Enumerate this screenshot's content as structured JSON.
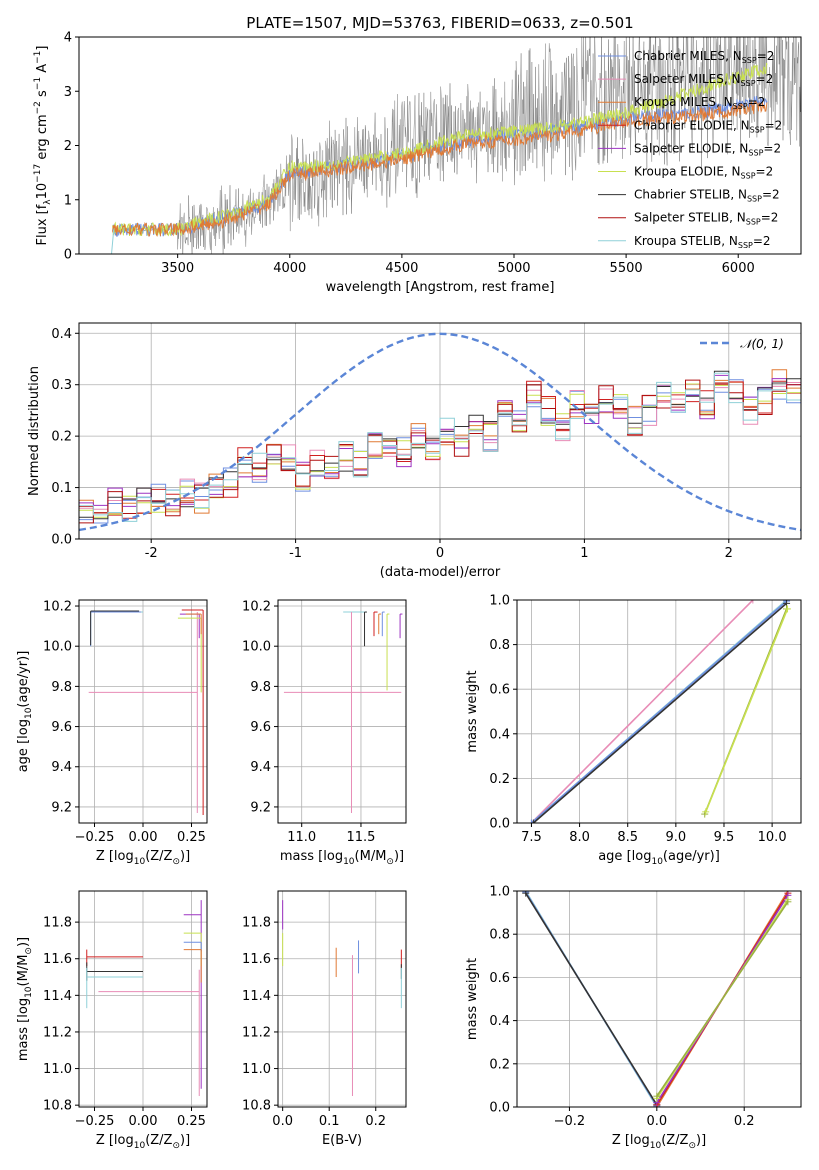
{
  "figure": {
    "title": "PLATE=1507, MJD=53763, FIBERID=0633, z=0.501"
  },
  "colors": {
    "chabrier_miles": "#6f8fe0",
    "salpeter_miles": "#e88cb6",
    "kroupa_miles": "#e07a35",
    "chabrier_elodie": "#d02020",
    "salpeter_elodie": "#9d33c2",
    "kroupa_elodie": "#c8e050",
    "chabrier_stelib": "#333333",
    "salpeter_stelib": "#b01010",
    "kroupa_stelib": "#8fd0d8",
    "data": "#808080",
    "normal": "#5b86d6"
  },
  "legend": {
    "sub": "SSP",
    "items": [
      {
        "label": "Chabrier MILES, N",
        "tail": "=2",
        "color": "#6f8fe0"
      },
      {
        "label": "Salpeter MILES, N",
        "tail": "=2",
        "color": "#e88cb6"
      },
      {
        "label": "Kroupa MILES, N",
        "tail": "=2",
        "color": "#e07a35"
      },
      {
        "label": "Chabrier ELODIE, N",
        "tail": "=2",
        "color": "#d02020"
      },
      {
        "label": "Salpeter ELODIE, N",
        "tail": "=2",
        "color": "#9d33c2"
      },
      {
        "label": "Kroupa ELODIE, N",
        "tail": "=2",
        "color": "#c8e050"
      },
      {
        "label": "Chabrier STELIB, N",
        "tail": "=2",
        "color": "#333333"
      },
      {
        "label": "Salpeter STELIB, N",
        "tail": "=2",
        "color": "#b01010"
      },
      {
        "label": "Kroupa STELIB, N",
        "tail": "=2",
        "color": "#8fd0d8"
      }
    ]
  },
  "chart_data": [
    {
      "id": "spectrum",
      "type": "line",
      "xlabel": "wavelength [Angstrom, rest frame]",
      "ylabel": "Flux [f",
      "ylabel_parts": [
        "Flux [f",
        "λ",
        "10",
        "−17",
        " erg cm",
        "−2",
        " s",
        "−1",
        " A",
        "−1",
        "]"
      ],
      "xlim": [
        3060,
        6280
      ],
      "ylim": [
        0,
        4
      ],
      "xticks": [
        3500,
        4000,
        4500,
        5000,
        5500,
        6000
      ],
      "yticks": [
        0,
        1,
        2,
        3,
        4
      ],
      "grid": false,
      "legend_position": "upper-right",
      "data_knots": {
        "x": [
          3210,
          3500,
          3700,
          3900,
          4000,
          4200,
          4500,
          4800,
          5000,
          5200,
          5500,
          5800,
          6100
        ],
        "y": [
          0.45,
          0.45,
          0.6,
          0.9,
          1.3,
          1.6,
          1.9,
          2.3,
          2.3,
          2.7,
          2.9,
          3.2,
          3.3
        ]
      },
      "data_noise_start": 3500,
      "models": [
        {
          "name": "Chabrier MILES",
          "x": [
            3210,
            3500,
            3700,
            3900,
            4000,
            4200,
            4500,
            4800,
            5000,
            5200,
            5500,
            5800,
            6100
          ],
          "y": [
            0.45,
            0.45,
            0.65,
            0.95,
            1.5,
            1.6,
            1.8,
            2.1,
            2.2,
            2.3,
            2.5,
            2.6,
            2.8
          ]
        },
        {
          "name": "Kroupa ELODIE",
          "x": [
            3210,
            3500,
            3700,
            3900,
            4000,
            4200,
            4500,
            4800,
            5000,
            5200,
            5500,
            5800,
            6100
          ],
          "y": [
            0.45,
            0.45,
            0.7,
            1.0,
            1.6,
            1.65,
            1.85,
            2.2,
            2.25,
            2.35,
            2.6,
            3.0,
            3.4
          ]
        },
        {
          "name": "Kroupa MILES",
          "x": [
            3210,
            3500,
            3700,
            3900,
            4000,
            4200,
            4500,
            4800,
            5000,
            5200,
            5500,
            5800,
            6100
          ],
          "y": [
            0.45,
            0.45,
            0.6,
            0.9,
            1.45,
            1.55,
            1.75,
            2.05,
            2.1,
            2.2,
            2.45,
            2.55,
            2.7
          ]
        }
      ]
    },
    {
      "id": "residuals",
      "type": "histogram",
      "xlabel": "(data-model)/error",
      "ylabel": "Normed distribution",
      "xlim": [
        -2.5,
        2.5
      ],
      "ylim": [
        0,
        0.42
      ],
      "xticks": [
        -2,
        -1,
        0,
        1,
        2
      ],
      "yticks": [
        0.0,
        0.1,
        0.2,
        0.3,
        0.4
      ],
      "grid": true,
      "legend_position": "upper-right",
      "legend_label": "𝒩(0, 1)",
      "curve": "normal pdf mean 0 sigma 1",
      "bin_edges_start": -2.5,
      "bin_width": 0.1,
      "hist_base": [
        0.05,
        0.06,
        0.07,
        0.06,
        0.07,
        0.08,
        0.07,
        0.09,
        0.08,
        0.1,
        0.11,
        0.15,
        0.14,
        0.17,
        0.16,
        0.12,
        0.15,
        0.14,
        0.16,
        0.15,
        0.18,
        0.19,
        0.17,
        0.2,
        0.18,
        0.21,
        0.19,
        0.22,
        0.2,
        0.24,
        0.23,
        0.28,
        0.25,
        0.22,
        0.26,
        0.24,
        0.27,
        0.26,
        0.23,
        0.25,
        0.28,
        0.27,
        0.29,
        0.26,
        0.3,
        0.28,
        0.25,
        0.27,
        0.3,
        0.29,
        0.31,
        0.3,
        0.33,
        0.32,
        0.3,
        0.31,
        0.28,
        0.26,
        0.27,
        0.25,
        0.22,
        0.21,
        0.19,
        0.2,
        0.18,
        0.17,
        0.16,
        0.17,
        0.16,
        0.15,
        0.14,
        0.15,
        0.13,
        0.14,
        0.12,
        0.13,
        0.12,
        0.13,
        0.11,
        0.12,
        0.11,
        0.12,
        0.1,
        0.11,
        0.1,
        0.1,
        0.09,
        0.1,
        0.09,
        0.1,
        0.09,
        0.09,
        0.08,
        0.09,
        0.08,
        0.09,
        0.08,
        0.08,
        0.07,
        0.08
      ]
    },
    {
      "id": "age-vs-z",
      "type": "scatter",
      "xlabel_parts": [
        "Z [log",
        "10",
        "(Z/Z",
        "⊙",
        ")]"
      ],
      "ylabel_parts": [
        "age  [log",
        "10",
        "(age/yr)]"
      ],
      "xlim": [
        -0.33,
        0.33
      ],
      "ylim": [
        9.12,
        10.23
      ],
      "xticks": [
        -0.25,
        0.0,
        0.25
      ],
      "xtick_labels": [
        "−0.25",
        "0.00",
        "0.25"
      ],
      "yticks": [
        9.2,
        9.4,
        9.6,
        9.8,
        10.0,
        10.2
      ],
      "grid": true,
      "errorbars": [
        {
          "color": "#8fd0d8",
          "x": -0.27,
          "y": 10.17,
          "xerr": [
            0.0,
            0.27
          ],
          "yerr": [
            0.17,
            0.0
          ]
        },
        {
          "color": "#6f8fe0",
          "x": -0.27,
          "y": 10.17,
          "xerr": [
            0.0,
            0.26
          ],
          "yerr": [
            0.17,
            0.0
          ]
        },
        {
          "color": "#333333",
          "x": -0.27,
          "y": 10.175,
          "xerr": [
            0.0,
            0.25
          ],
          "yerr": [
            0.17,
            0.0
          ]
        },
        {
          "color": "#e88cb6",
          "x": 0.28,
          "y": 9.77,
          "xerr": [
            0.56,
            0.0
          ],
          "yerr": [
            0.6,
            0.4
          ]
        },
        {
          "color": "#9d33c2",
          "x": 0.29,
          "y": 10.16,
          "xerr": [
            0.1,
            0.0
          ],
          "yerr": [
            0.12,
            0.0
          ]
        },
        {
          "color": "#c8e050",
          "x": 0.3,
          "y": 10.14,
          "xerr": [
            0.12,
            0.0
          ],
          "yerr": [
            0.37,
            0.0
          ]
        },
        {
          "color": "#d02020",
          "x": 0.31,
          "y": 10.18,
          "xerr": [
            0.11,
            0.0
          ],
          "yerr": [
            1.02,
            0.0
          ]
        },
        {
          "color": "#e07a35",
          "x": 0.3,
          "y": 10.16,
          "xerr": [
            0.08,
            0.0
          ],
          "yerr": [
            0.1,
            0.0
          ]
        }
      ]
    },
    {
      "id": "age-vs-mass",
      "type": "scatter",
      "xlabel_parts": [
        "mass [log",
        "10",
        "(M/M",
        "⊙",
        ")]"
      ],
      "xlim": [
        10.8,
        11.88
      ],
      "ylim": [
        9.12,
        10.23
      ],
      "xticks": [
        11.0,
        11.5
      ],
      "xtick_labels": [
        "11.0",
        "11.5"
      ],
      "yticks": [
        9.2,
        9.4,
        9.6,
        9.8,
        10.0,
        10.2
      ],
      "grid": true,
      "errorbars": [
        {
          "color": "#8fd0d8",
          "x": 11.55,
          "y": 10.17,
          "xerr": [
            0.2,
            0.0
          ],
          "yerr": [
            0.0,
            0.0
          ]
        },
        {
          "color": "#e88cb6",
          "x": 11.42,
          "y": 9.77,
          "xerr": [
            0.57,
            0.42
          ],
          "yerr": [
            0.6,
            0.4
          ]
        },
        {
          "color": "#333333",
          "x": 11.53,
          "y": 10.17,
          "xerr": [
            0.0,
            0.02
          ],
          "yerr": [
            0.17,
            0.0
          ]
        },
        {
          "color": "#d02020",
          "x": 11.61,
          "y": 10.17,
          "xerr": [
            0.0,
            0.03
          ],
          "yerr": [
            0.12,
            0.0
          ]
        },
        {
          "color": "#6f8fe0",
          "x": 11.68,
          "y": 10.17,
          "xerr": [
            0.0,
            0.02
          ],
          "yerr": [
            0.12,
            0.0
          ]
        },
        {
          "color": "#c8e050",
          "x": 11.72,
          "y": 10.16,
          "xerr": [
            0.0,
            0.02
          ],
          "yerr": [
            0.38,
            0.0
          ]
        },
        {
          "color": "#e07a35",
          "x": 11.65,
          "y": 10.16,
          "xerr": [
            0.0,
            0.02
          ],
          "yerr": [
            0.1,
            0.0
          ]
        },
        {
          "color": "#9d33c2",
          "x": 11.83,
          "y": 10.16,
          "xerr": [
            0.0,
            0.02
          ],
          "yerr": [
            0.12,
            0.0
          ]
        }
      ]
    },
    {
      "id": "weight-vs-age",
      "type": "line",
      "xlabel_parts": [
        "age  [log",
        "10",
        "(age/yr)]"
      ],
      "ylabel": "mass weight",
      "xlim": [
        7.35,
        10.3
      ],
      "ylim": [
        0,
        1.0
      ],
      "xticks": [
        7.5,
        8.0,
        8.5,
        9.0,
        9.5,
        10.0
      ],
      "xtick_labels": [
        "7.5",
        "8.0",
        "8.5",
        "9.0",
        "9.5",
        "10.0"
      ],
      "yticks": [
        0.0,
        0.2,
        0.4,
        0.6,
        0.8,
        1.0
      ],
      "grid": true,
      "series": [
        {
          "color": "#e88cb6",
          "x": [
            7.5,
            9.8
          ],
          "y": [
            0.0,
            1.0
          ]
        },
        {
          "color": "#8fd0d8",
          "x": [
            7.5,
            10.15
          ],
          "y": [
            0.0,
            1.0
          ]
        },
        {
          "color": "#6f8fe0",
          "x": [
            7.5,
            10.15
          ],
          "y": [
            0.0,
            0.995
          ]
        },
        {
          "color": "#333333",
          "x": [
            7.52,
            10.15
          ],
          "y": [
            0.0,
            0.985
          ]
        },
        {
          "color": "#9ab040",
          "x": [
            9.3,
            10.15
          ],
          "y": [
            0.04,
            0.96
          ]
        },
        {
          "color": "#c8e050",
          "x": [
            9.31,
            10.16
          ],
          "y": [
            0.05,
            0.96
          ]
        }
      ]
    },
    {
      "id": "mass-vs-z",
      "type": "scatter",
      "xlabel_parts": [
        "Z [log",
        "10",
        "(Z/Z",
        "⊙",
        ")]"
      ],
      "ylabel_parts": [
        "mass [log",
        "10",
        "(M/M",
        "⊙",
        ")]"
      ],
      "xlim": [
        -0.33,
        0.33
      ],
      "ylim": [
        10.79,
        11.97
      ],
      "xticks": [
        -0.25,
        0.0,
        0.25
      ],
      "xtick_labels": [
        "−0.25",
        "0.00",
        "0.25"
      ],
      "yticks": [
        10.8,
        11.0,
        11.2,
        11.4,
        11.6,
        11.8
      ],
      "grid": true,
      "errorbars": [
        {
          "color": "#d02020",
          "x": -0.29,
          "y": 11.61,
          "xerr": [
            0.0,
            0.29
          ],
          "yerr": [
            0.05,
            0.04
          ]
        },
        {
          "color": "#333333",
          "x": -0.29,
          "y": 11.53,
          "xerr": [
            0.0,
            0.29
          ],
          "yerr": [
            0.05,
            0.05
          ]
        },
        {
          "color": "#8fd0d8",
          "x": -0.29,
          "y": 11.5,
          "xerr": [
            0.0,
            0.29
          ],
          "yerr": [
            0.17,
            0.05
          ]
        },
        {
          "color": "#e88cb6",
          "x": 0.29,
          "y": 11.42,
          "xerr": [
            0.52,
            0.0
          ],
          "yerr": [
            0.57,
            0.12
          ]
        },
        {
          "color": "#9d33c2",
          "x": 0.3,
          "y": 11.84,
          "xerr": [
            0.09,
            0.0
          ],
          "yerr": [
            0.95,
            0.08
          ]
        },
        {
          "color": "#c8e050",
          "x": 0.3,
          "y": 11.74,
          "xerr": [
            0.09,
            0.0
          ],
          "yerr": [
            0.18,
            0.0
          ]
        },
        {
          "color": "#6f8fe0",
          "x": 0.3,
          "y": 11.69,
          "xerr": [
            0.09,
            0.0
          ],
          "yerr": [
            0.05,
            0.0
          ]
        },
        {
          "color": "#e07a35",
          "x": 0.3,
          "y": 11.65,
          "xerr": [
            0.09,
            0.0
          ],
          "yerr": [
            0.18,
            0.0
          ]
        }
      ]
    },
    {
      "id": "mass-vs-ebv",
      "type": "scatter",
      "xlabel": "E(B-V)",
      "xlim": [
        -0.01,
        0.265
      ],
      "ylim": [
        10.79,
        11.97
      ],
      "xticks": [
        0.0,
        0.1,
        0.2
      ],
      "xtick_labels": [
        "0.0",
        "0.1",
        "0.2"
      ],
      "yticks": [
        10.8,
        11.0,
        11.2,
        11.4,
        11.6,
        11.8
      ],
      "grid": true,
      "errorbars": [
        {
          "color": "#9d33c2",
          "x": 0.0,
          "y": 11.84,
          "xerr": [
            0.0,
            0.0
          ],
          "yerr": [
            0.08,
            0.08
          ]
        },
        {
          "color": "#c8e050",
          "x": 0.0,
          "y": 11.74,
          "xerr": [
            0.0,
            0.0
          ],
          "yerr": [
            0.18,
            0.0
          ]
        },
        {
          "color": "#e07a35",
          "x": 0.115,
          "y": 11.58,
          "xerr": [
            0.0,
            0.0
          ],
          "yerr": [
            0.08,
            0.08
          ]
        },
        {
          "color": "#e88cb6",
          "x": 0.15,
          "y": 11.4,
          "xerr": [
            0.0,
            0.0
          ],
          "yerr": [
            0.55,
            0.22
          ]
        },
        {
          "color": "#6f8fe0",
          "x": 0.163,
          "y": 11.6,
          "xerr": [
            0.0,
            0.0
          ],
          "yerr": [
            0.08,
            0.1
          ]
        },
        {
          "color": "#d02020",
          "x": 0.255,
          "y": 11.58,
          "xerr": [
            0.0,
            0.0
          ],
          "yerr": [
            0.03,
            0.07
          ]
        },
        {
          "color": "#333333",
          "x": 0.255,
          "y": 11.53,
          "xerr": [
            0.0,
            0.0
          ],
          "yerr": [
            0.04,
            0.04
          ]
        },
        {
          "color": "#8fd0d8",
          "x": 0.255,
          "y": 11.45,
          "xerr": [
            0.0,
            0.0
          ],
          "yerr": [
            0.12,
            0.1
          ]
        }
      ]
    },
    {
      "id": "weight-vs-z",
      "type": "line",
      "xlabel_parts": [
        "Z [log",
        "10",
        "(Z/Z",
        "⊙",
        ")]"
      ],
      "ylabel": "mass weight",
      "xlim": [
        -0.32,
        0.33
      ],
      "ylim": [
        0,
        1.0
      ],
      "xticks": [
        -0.2,
        0.0,
        0.2
      ],
      "xtick_labels": [
        "−0.2",
        "0.0",
        "0.2"
      ],
      "yticks": [
        0.0,
        0.2,
        0.4,
        0.6,
        0.8,
        1.0
      ],
      "grid": true,
      "series": [
        {
          "color": "#8fd0d8",
          "x": [
            -0.3,
            0.0
          ],
          "y": [
            1.0,
            0.0
          ]
        },
        {
          "color": "#6f8fe0",
          "x": [
            -0.3,
            0.0
          ],
          "y": [
            0.995,
            0.005
          ]
        },
        {
          "color": "#333333",
          "x": [
            -0.3,
            0.0
          ],
          "y": [
            0.99,
            0.01
          ]
        },
        {
          "color": "#e07a35",
          "x": [
            0.0,
            0.3
          ],
          "y": [
            0.0,
            1.0
          ]
        },
        {
          "color": "#d02020",
          "x": [
            0.0,
            0.3
          ],
          "y": [
            0.01,
            0.99
          ]
        },
        {
          "color": "#9d33c2",
          "x": [
            0.0,
            0.3
          ],
          "y": [
            0.02,
            0.98
          ]
        },
        {
          "color": "#c8e050",
          "x": [
            0.0,
            0.3
          ],
          "y": [
            0.04,
            0.96
          ]
        },
        {
          "color": "#9ab040",
          "x": [
            0.0,
            0.3
          ],
          "y": [
            0.05,
            0.95
          ]
        }
      ]
    }
  ]
}
